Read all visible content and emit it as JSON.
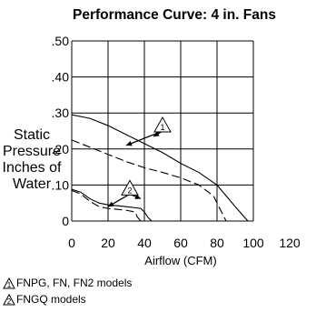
{
  "chart_data": {
    "type": "line",
    "title": "Performance Curve: 4 in. Fans",
    "xlabel": "Airflow (CFM)",
    "ylabel_lines": [
      "Static Pressure",
      "Inches of Water"
    ],
    "xlim": [
      0,
      120
    ],
    "ylim": [
      0,
      0.5
    ],
    "x_ticks": [
      0,
      20,
      40,
      60,
      80,
      100,
      120
    ],
    "x_tick_labels": [
      "0",
      "20",
      "40",
      "60",
      "80",
      "100",
      "120"
    ],
    "y_ticks": [
      0,
      0.1,
      0.2,
      0.3,
      0.4,
      0.5
    ],
    "y_tick_labels": [
      "0",
      ".10",
      ".20",
      ".30",
      ".40",
      ".50"
    ],
    "grid": true,
    "series": [
      {
        "label_marker": "1",
        "style": "solid",
        "x": [
          0,
          10,
          20,
          30,
          40,
          50,
          60,
          70,
          80,
          90,
          97
        ],
        "y": [
          0.295,
          0.285,
          0.265,
          0.24,
          0.215,
          0.19,
          0.16,
          0.135,
          0.1,
          0.04,
          0.0
        ]
      },
      {
        "label_marker": "1",
        "style": "dashed",
        "x": [
          0,
          10,
          20,
          30,
          40,
          50,
          60,
          70,
          78,
          82,
          85
        ],
        "y": [
          0.225,
          0.205,
          0.185,
          0.165,
          0.148,
          0.135,
          0.12,
          0.1,
          0.07,
          0.03,
          0.0
        ]
      },
      {
        "label_marker": "2",
        "style": "solid",
        "x": [
          0,
          5,
          10,
          15,
          20,
          30,
          38,
          40,
          42,
          44
        ],
        "y": [
          0.088,
          0.08,
          0.062,
          0.05,
          0.045,
          0.04,
          0.035,
          0.025,
          0.01,
          0.0
        ]
      },
      {
        "label_marker": "2",
        "style": "dashed",
        "x": [
          0,
          5,
          10,
          15,
          20,
          30,
          35,
          36,
          38
        ],
        "y": [
          0.085,
          0.075,
          0.055,
          0.04,
          0.035,
          0.03,
          0.025,
          0.012,
          0.0
        ]
      }
    ],
    "annotations": [
      {
        "marker": "1",
        "x": 50,
        "y": 0.265
      },
      {
        "marker": "2",
        "x": 32,
        "y": 0.09
      }
    ],
    "legend_notes": [
      {
        "marker": "1",
        "text": "FNPG, FN, FN2 models"
      },
      {
        "marker": "2",
        "text": "FNGQ models"
      }
    ]
  }
}
